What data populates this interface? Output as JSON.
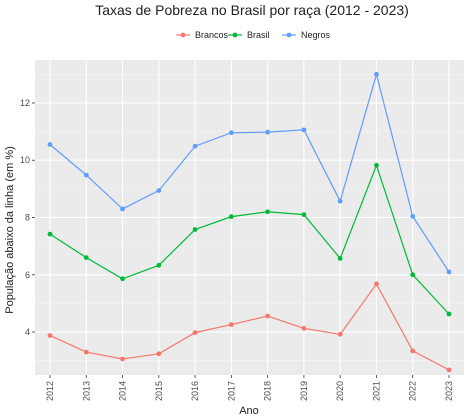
{
  "chart_data": {
    "type": "line",
    "title": "Taxas de Pobreza no Brasil por raça (2012 - 2023)",
    "xlabel": "Ano",
    "ylabel": "População abaixo da linha (em %)",
    "x": [
      2012,
      2013,
      2014,
      2015,
      2016,
      2017,
      2018,
      2019,
      2020,
      2021,
      2022,
      2023
    ],
    "x_tick_labels": [
      "2012",
      "2013",
      "2014",
      "2015",
      "2016",
      "2017",
      "2018",
      "2019",
      "2020",
      "2021",
      "2022",
      "2023"
    ],
    "ylim": [
      2.5,
      13.5
    ],
    "y_ticks": [
      4,
      6,
      8,
      10,
      12
    ],
    "y_tick_labels": [
      "4",
      "6",
      "8",
      "10",
      "12"
    ],
    "grid": true,
    "legend_position": "top",
    "series": [
      {
        "name": "Brancos",
        "color": "#F8766D",
        "values": [
          3.88,
          3.3,
          3.06,
          3.24,
          3.98,
          4.26,
          4.56,
          4.13,
          3.92,
          5.68,
          3.34,
          2.68
        ]
      },
      {
        "name": "Brasil",
        "color": "#00BA38",
        "values": [
          7.42,
          6.6,
          5.86,
          6.33,
          7.58,
          8.03,
          8.2,
          8.1,
          6.57,
          9.82,
          6.0,
          4.63
        ]
      },
      {
        "name": "Negros",
        "color": "#619CFF",
        "values": [
          10.55,
          9.48,
          8.3,
          8.94,
          10.49,
          10.96,
          10.98,
          11.06,
          8.57,
          13.0,
          8.04,
          6.1
        ]
      }
    ]
  }
}
